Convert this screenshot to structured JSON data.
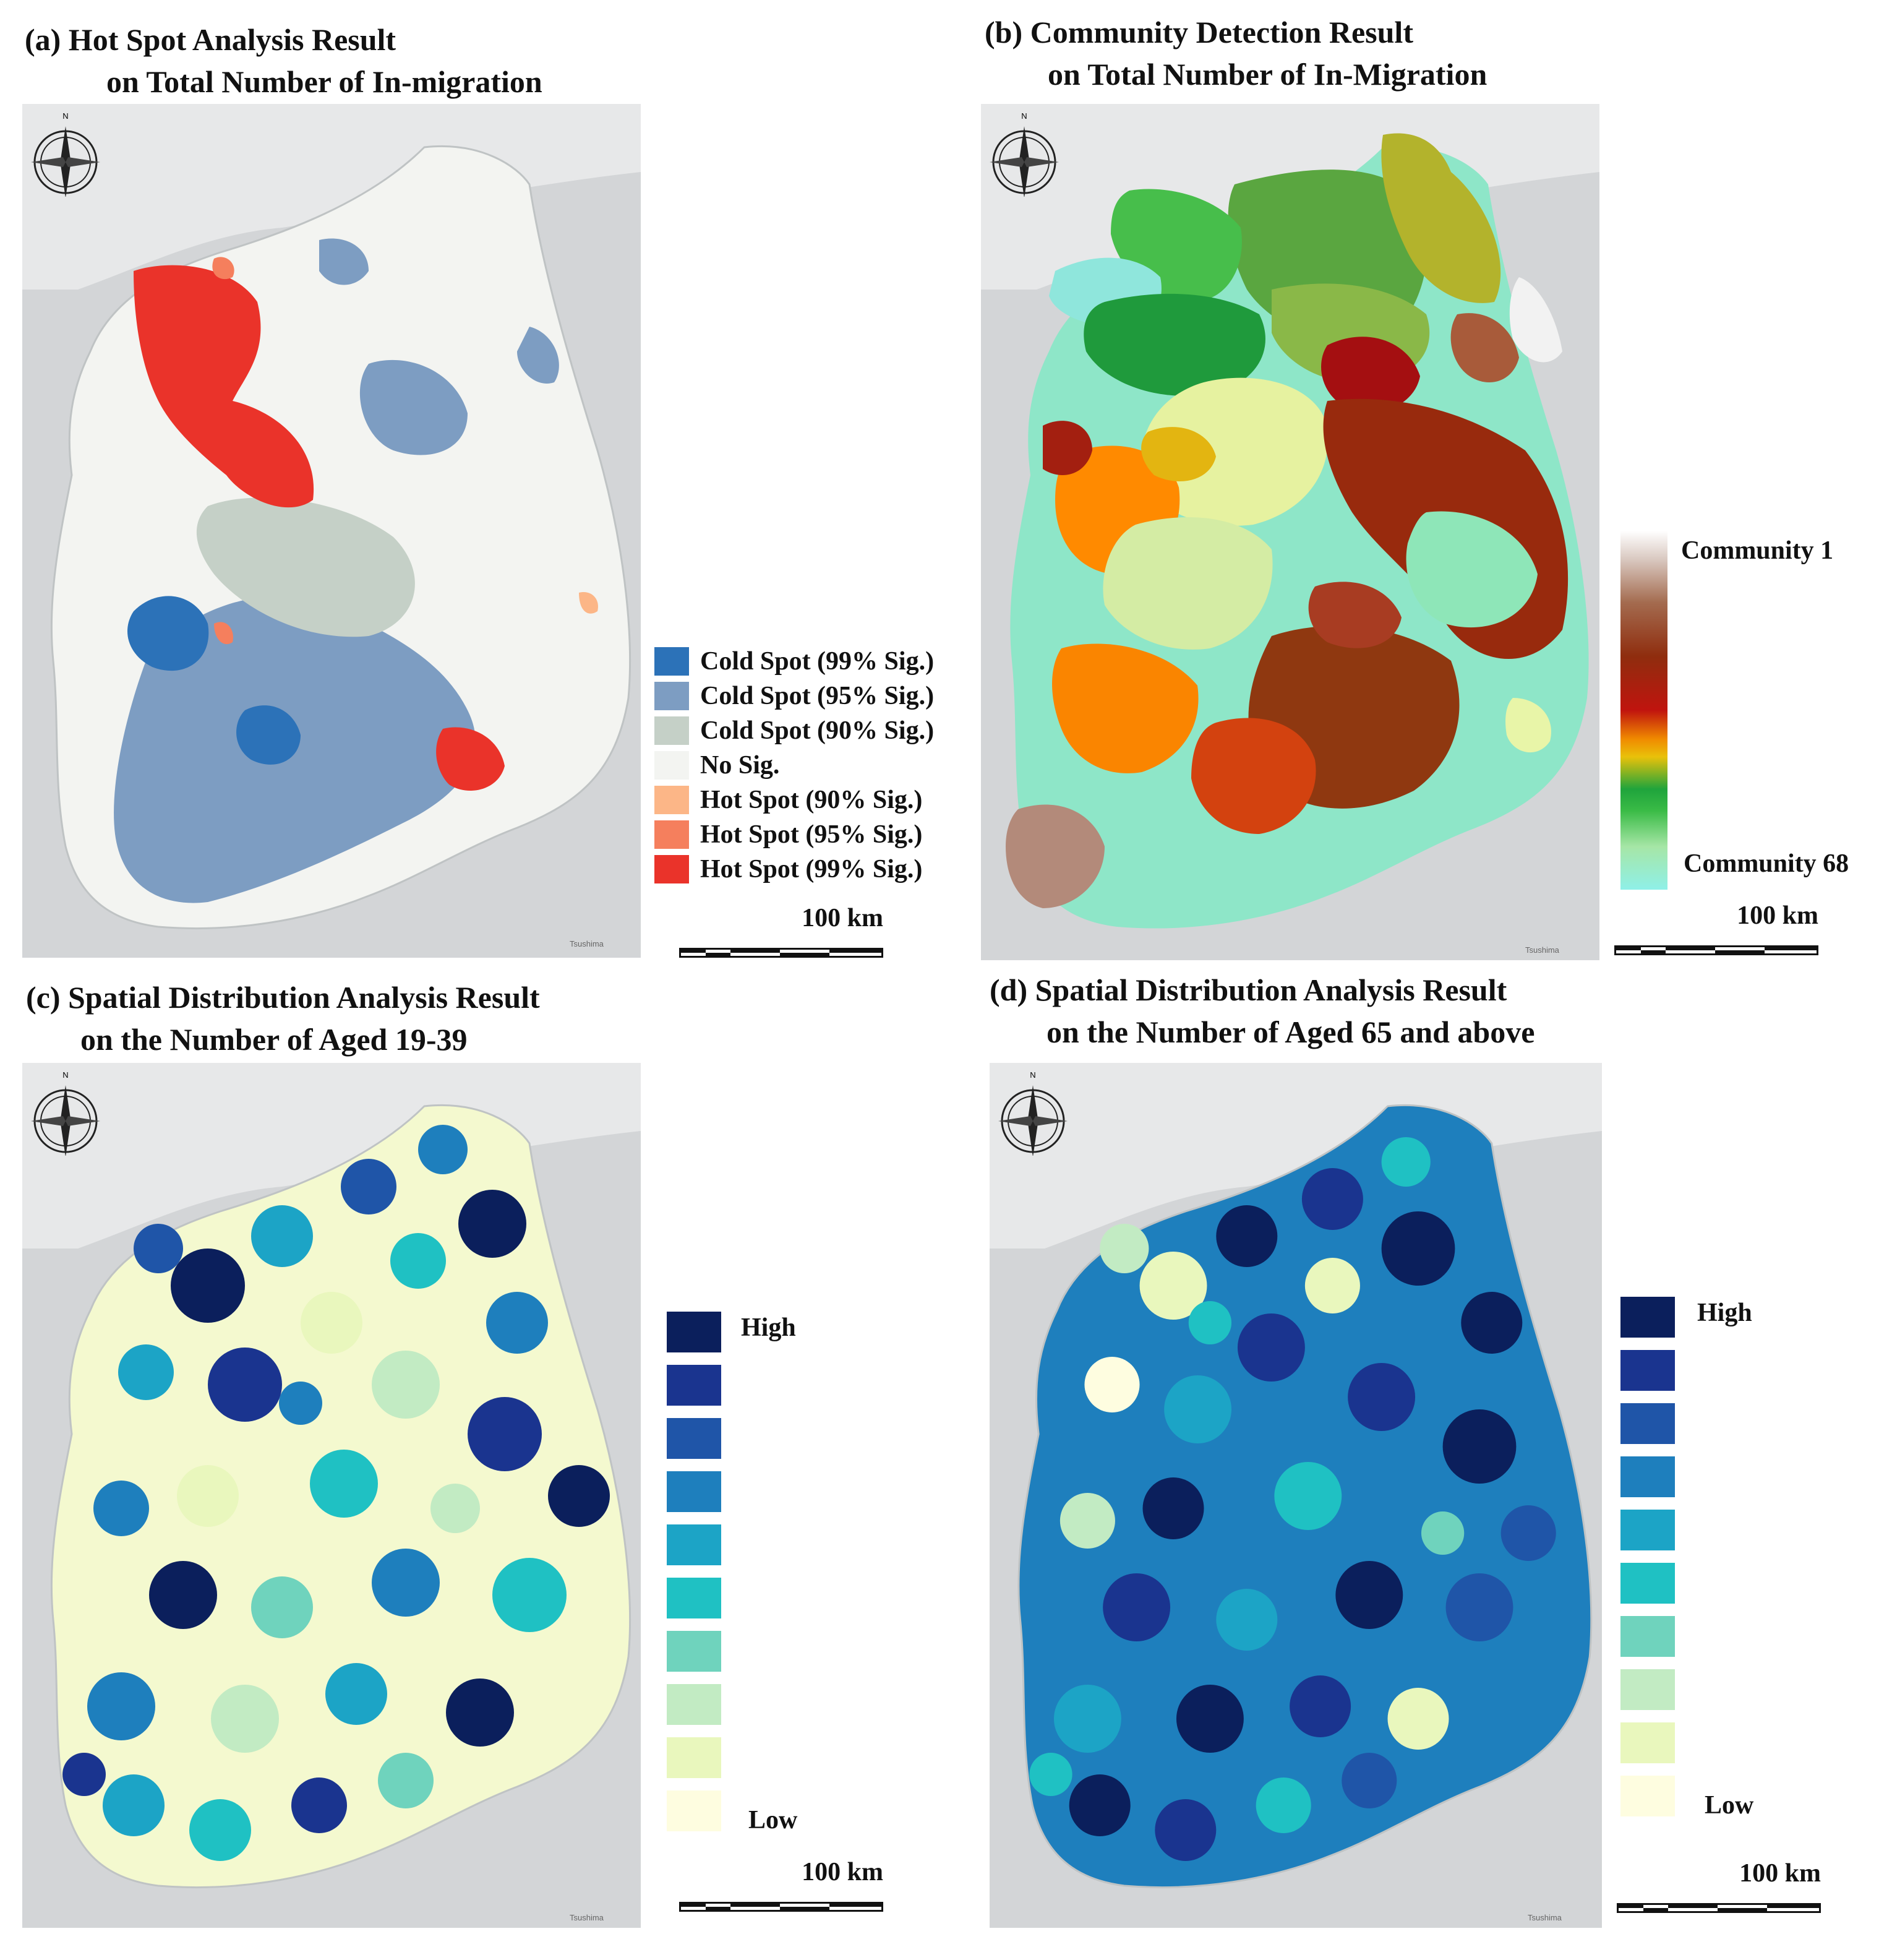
{
  "panels": {
    "a": {
      "title_line1": "(a)  Hot Spot Analysis Result",
      "title_line2": "on Total Number of In-migration",
      "legend": [
        {
          "label": "Cold Spot (99% Sig.)",
          "color": "#2c72b8"
        },
        {
          "label": "Cold Spot (95% Sig.)",
          "color": "#7d9dc2"
        },
        {
          "label": "Cold Spot (90% Sig.)",
          "color": "#c5d0c7"
        },
        {
          "label": "No Sig.",
          "color": "#f3f4f1"
        },
        {
          "label": "Hot Spot (90% Sig.)",
          "color": "#fcb687"
        },
        {
          "label": "Hot Spot (95% Sig.)",
          "color": "#f57f5d"
        },
        {
          "label": "Hot Spot (99% Sig.)",
          "color": "#ea332a"
        }
      ],
      "scale_label": "100 km"
    },
    "b": {
      "title_line1": "(b) Community Detection Result",
      "title_line2": "on Total Number of In-Migration",
      "legend_top": "Community 1",
      "legend_bottom": "Community 68",
      "scale_label": "100 km"
    },
    "c": {
      "title_line1": "(c) Spatial Distribution Analysis Result",
      "title_line2": "on the Number of Aged 19-39",
      "legend_high": "High",
      "legend_low": "Low",
      "scale_label": "100 km"
    },
    "d": {
      "title_line1": "(d) Spatial Distribution Analysis Result",
      "title_line2": "on the Number of Aged 65 and above",
      "legend_high": "High",
      "legend_low": "Low",
      "scale_label": "100 km"
    }
  },
  "class_colors": [
    "#0b1f5c",
    "#1a348f",
    "#1f55a8",
    "#1e7fbd",
    "#1ca4c6",
    "#1fc1c3",
    "#6fd3bd",
    "#c2ebc3",
    "#e9f7bd",
    "#fefde0"
  ],
  "map_label": "Tsushima",
  "compass_label": "N"
}
